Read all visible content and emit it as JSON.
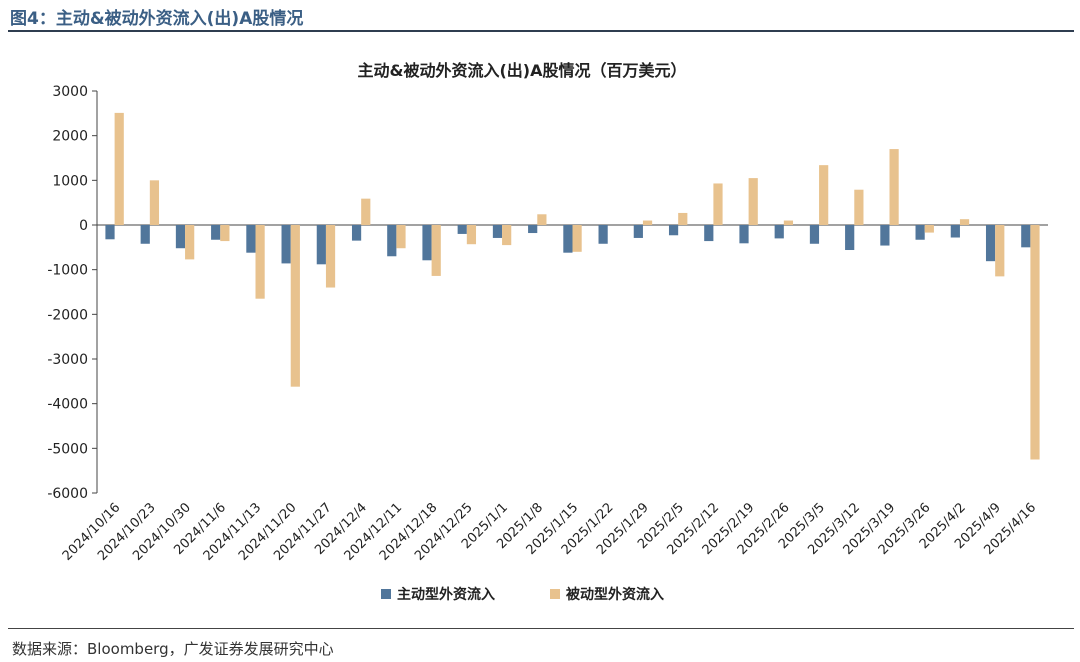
{
  "figure_header": "图4：主动&被动外资流入(出)A股情况",
  "source_note": "数据来源：Bloomberg，广发证券发展研究中心",
  "colors": {
    "active": "#51769b",
    "passive": "#e8c28e",
    "header": "#3b5f85"
  },
  "chart_data": {
    "type": "bar",
    "title": "主动&被动外资流入(出)A股情况（百万美元）",
    "xlabel": "",
    "ylabel": "",
    "ylim": [
      -6000,
      3000
    ],
    "yticks": [
      "3000",
      "2000",
      "1000",
      "0",
      "-1000",
      "-2000",
      "-3000",
      "-4000",
      "-5000",
      "-6000"
    ],
    "categories": [
      "2024/10/16",
      "2024/10/23",
      "2024/10/30",
      "2024/11/6",
      "2024/11/13",
      "2024/11/20",
      "2024/11/27",
      "2024/12/4",
      "2024/12/11",
      "2024/12/18",
      "2024/12/25",
      "2025/1/1",
      "2025/1/8",
      "2025/1/15",
      "2025/1/22",
      "2025/1/29",
      "2025/2/5",
      "2025/2/12",
      "2025/2/19",
      "2025/2/26",
      "2025/3/5",
      "2025/3/12",
      "2025/3/19",
      "2025/3/26",
      "2025/4/2",
      "2025/4/9",
      "2025/4/16"
    ],
    "series": [
      {
        "name": "主动型外资流入",
        "values": [
          -320,
          -420,
          -520,
          -330,
          -620,
          -860,
          -880,
          -350,
          -700,
          -790,
          -200,
          -290,
          -180,
          -620,
          -420,
          -290,
          -230,
          -360,
          -410,
          -300,
          -420,
          -560,
          -460,
          -330,
          -280,
          -810,
          -500
        ]
      },
      {
        "name": "被动型外资流入",
        "values": [
          2510,
          1000,
          -770,
          -360,
          -1650,
          -3620,
          -1400,
          590,
          -520,
          -1140,
          -430,
          -450,
          240,
          -600,
          0,
          100,
          270,
          930,
          1050,
          100,
          1340,
          790,
          1700,
          -170,
          130,
          -1150,
          -5250
        ]
      }
    ],
    "legend_position": "bottom-center"
  }
}
